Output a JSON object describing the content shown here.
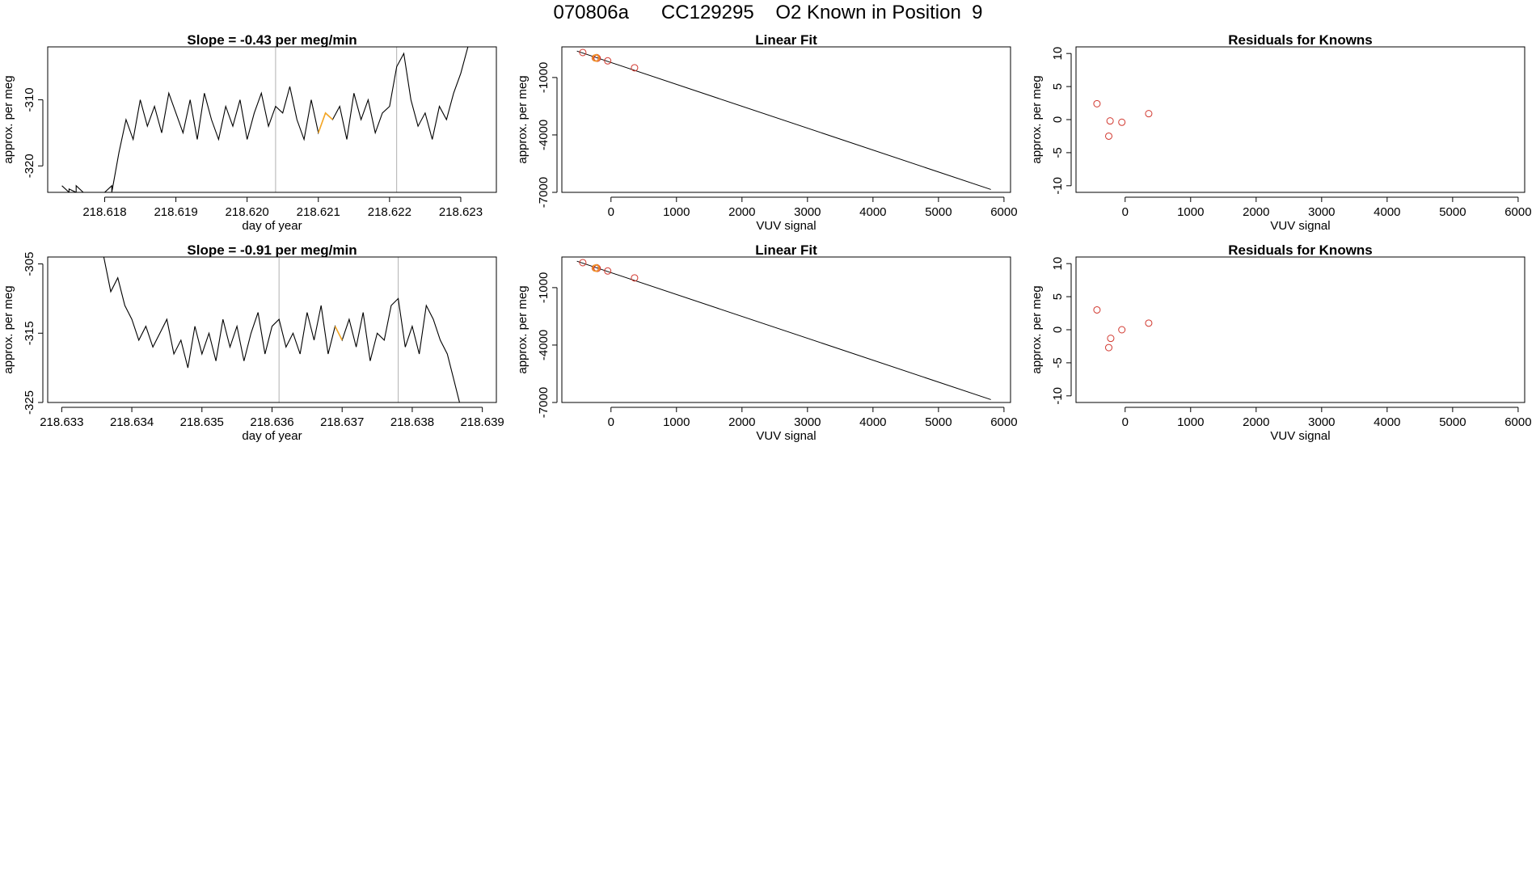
{
  "page": {
    "title": "070806a      CC129295    O2 Known in Position  9"
  },
  "colors": {
    "series": "#000000",
    "known_marker": "#d1372e",
    "highlight": "#f5a623",
    "vline": "#b0b0b0",
    "axis": "#000000"
  },
  "chart_data": [
    {
      "id": "ts1",
      "type": "line",
      "title": "Slope =  -0.43  per meg/min",
      "xlabel": "day of year",
      "ylabel": "approx. per meg",
      "xlim": [
        218.6172,
        218.6235
      ],
      "ylim": [
        -324,
        -302
      ],
      "xticks": [
        218.618,
        218.619,
        218.62,
        218.621,
        218.622,
        218.623
      ],
      "xtick_labels": [
        "218.618",
        "218.619",
        "218.620",
        "218.621",
        "218.622",
        "218.623"
      ],
      "yticks": [
        -310,
        -320
      ],
      "ytick_labels": [
        "-310",
        "-320"
      ],
      "vlines": [
        218.6204,
        218.6221
      ],
      "highlight_x": [
        218.621,
        218.6212
      ],
      "x": [
        218.6174,
        218.6175,
        218.6175,
        218.6176,
        218.6176,
        218.6177,
        218.6178,
        218.618,
        218.6181,
        218.6181,
        218.6182,
        218.6183,
        218.6184,
        218.6185,
        218.6186,
        218.6187,
        218.6188,
        218.6189,
        218.619,
        218.6191,
        218.6192,
        218.6193,
        218.6194,
        218.6195,
        218.6196,
        218.6197,
        218.6198,
        218.6199,
        218.62,
        218.6201,
        218.6202,
        218.6203,
        218.6204,
        218.6205,
        218.6206,
        218.6207,
        218.6208,
        218.6209,
        218.621,
        218.6211,
        218.6212,
        218.6213,
        218.6214,
        218.6215,
        218.6216,
        218.6217,
        218.6218,
        218.6219,
        218.622,
        218.6221,
        218.6222,
        218.6223,
        218.6224,
        218.6225,
        218.6226,
        218.6227,
        218.6228,
        218.6229,
        218.623,
        218.6231
      ],
      "y": [
        -323,
        -324,
        -323.5,
        -324,
        -323,
        -324,
        -324,
        -324,
        -323,
        -324,
        -318,
        -313,
        -316,
        -310,
        -314,
        -311,
        -315,
        -309,
        -312,
        -315,
        -310,
        -316,
        -309,
        -313,
        -316,
        -311,
        -314,
        -310,
        -316,
        -312,
        -309,
        -314,
        -311,
        -312,
        -308,
        -313,
        -316,
        -310,
        -315,
        -312,
        -313,
        -311,
        -316,
        -309,
        -313,
        -310,
        -315,
        -312,
        -311,
        -305,
        -303,
        -310,
        -314,
        -312,
        -316,
        -311,
        -313,
        -309,
        -306,
        -302
      ],
      "x_pairs_note": ""
    },
    {
      "id": "fit1",
      "type": "scatter",
      "title": "Linear Fit",
      "xlabel": "VUV signal",
      "ylabel": "approx. per meg",
      "xlim": [
        -750,
        6100
      ],
      "ylim": [
        -7000,
        600
      ],
      "xticks": [
        0,
        1000,
        2000,
        3000,
        4000,
        5000,
        6000
      ],
      "xtick_labels": [
        "0",
        "1000",
        "2000",
        "3000",
        "4000",
        "5000",
        "6000"
      ],
      "yticks": [
        -1000,
        -4000,
        -7000
      ],
      "ytick_labels": [
        "-1000",
        "-4000",
        "-7000"
      ],
      "points": [
        [
          -430,
          305
        ],
        [
          -240,
          20
        ],
        [
          -220,
          40
        ],
        [
          -210,
          5
        ],
        [
          -50,
          -130
        ],
        [
          360,
          -490
        ]
      ],
      "highlight_points": [
        [
          -230,
          20
        ]
      ],
      "fit_line": [
        [
          -520,
          380
        ],
        [
          5800,
          -6850
        ]
      ]
    },
    {
      "id": "res1",
      "type": "scatter",
      "title": "Residuals for Knowns",
      "xlabel": "VUV signal",
      "ylabel": "approx. per meg",
      "xlim": [
        -750,
        6100
      ],
      "ylim": [
        -11,
        11
      ],
      "xticks": [
        0,
        1000,
        2000,
        3000,
        4000,
        5000,
        6000
      ],
      "xtick_labels": [
        "0",
        "1000",
        "2000",
        "3000",
        "4000",
        "5000",
        "6000"
      ],
      "yticks": [
        10,
        5,
        0,
        -5,
        -10
      ],
      "ytick_labels": [
        "10",
        "5",
        "0",
        "-5",
        "-10"
      ],
      "points": [
        [
          -430,
          2.4
        ],
        [
          -230,
          -0.2
        ],
        [
          -250,
          -2.5
        ],
        [
          -50,
          -0.4
        ],
        [
          360,
          0.9
        ]
      ]
    },
    {
      "id": "ts2",
      "type": "line",
      "title": "Slope =  -0.91  per meg/min",
      "xlabel": "day of year",
      "ylabel": "approx. per meg",
      "xlim": [
        218.6328,
        218.6392
      ],
      "ylim": [
        -325,
        -304
      ],
      "xticks": [
        218.633,
        218.634,
        218.635,
        218.636,
        218.637,
        218.638,
        218.639
      ],
      "xtick_labels": [
        "218.633",
        "218.634",
        "218.635",
        "218.636",
        "218.637",
        "218.638",
        "218.639"
      ],
      "yticks": [
        -305,
        -315,
        -325
      ],
      "ytick_labels": [
        "-305",
        "-315",
        "-325"
      ],
      "vlines": [
        218.6361,
        218.6378
      ],
      "highlight_x": [
        218.6369,
        218.637
      ],
      "x": [
        218.6336,
        218.6337,
        218.6338,
        218.6339,
        218.634,
        218.6341,
        218.6342,
        218.6343,
        218.6344,
        218.6345,
        218.6346,
        218.6347,
        218.6348,
        218.6349,
        218.635,
        218.6351,
        218.6352,
        218.6353,
        218.6354,
        218.6355,
        218.6356,
        218.6357,
        218.6358,
        218.6359,
        218.636,
        218.6361,
        218.6362,
        218.6363,
        218.6364,
        218.6365,
        218.6366,
        218.6367,
        218.6368,
        218.6369,
        218.637,
        218.6371,
        218.6372,
        218.6373,
        218.6374,
        218.6375,
        218.6376,
        218.6377,
        218.6378,
        218.6379,
        218.638,
        218.6381,
        218.6382,
        218.6383,
        218.6384,
        218.6385,
        218.6386,
        218.6387
      ],
      "y": [
        -304,
        -309,
        -307,
        -311,
        -313,
        -316,
        -314,
        -317,
        -315,
        -313,
        -318,
        -316,
        -320,
        -314,
        -318,
        -315,
        -319,
        -313,
        -317,
        -314,
        -319,
        -315,
        -312,
        -318,
        -314,
        -313,
        -317,
        -315,
        -318,
        -312,
        -316,
        -311,
        -318,
        -314,
        -316,
        -313,
        -317,
        -312,
        -319,
        -315,
        -316,
        -311,
        -310,
        -317,
        -314,
        -318,
        -311,
        -313,
        -316,
        -318,
        -322,
        -326
      ]
    },
    {
      "id": "fit2",
      "type": "scatter",
      "title": "Linear Fit",
      "xlabel": "VUV signal",
      "ylabel": "approx. per meg",
      "xlim": [
        -750,
        6100
      ],
      "ylim": [
        -7000,
        600
      ],
      "xticks": [
        0,
        1000,
        2000,
        3000,
        4000,
        5000,
        6000
      ],
      "xtick_labels": [
        "0",
        "1000",
        "2000",
        "3000",
        "4000",
        "5000",
        "6000"
      ],
      "yticks": [
        -1000,
        -4000,
        -7000
      ],
      "ytick_labels": [
        "-1000",
        "-4000",
        "-7000"
      ],
      "points": [
        [
          -430,
          305
        ],
        [
          -240,
          20
        ],
        [
          -220,
          40
        ],
        [
          -210,
          5
        ],
        [
          -50,
          -130
        ],
        [
          360,
          -490
        ]
      ],
      "highlight_points": [
        [
          -230,
          20
        ]
      ],
      "fit_line": [
        [
          -520,
          380
        ],
        [
          5800,
          -6850
        ]
      ]
    },
    {
      "id": "res2",
      "type": "scatter",
      "title": "Residuals for Knowns",
      "xlabel": "VUV signal",
      "ylabel": "approx. per meg",
      "xlim": [
        -750,
        6100
      ],
      "ylim": [
        -11,
        11
      ],
      "xticks": [
        0,
        1000,
        2000,
        3000,
        4000,
        5000,
        6000
      ],
      "xtick_labels": [
        "0",
        "1000",
        "2000",
        "3000",
        "4000",
        "5000",
        "6000"
      ],
      "yticks": [
        10,
        5,
        0,
        -5,
        -10
      ],
      "ytick_labels": [
        "10",
        "5",
        "0",
        "-5",
        "-10"
      ],
      "points": [
        [
          -430,
          3.0
        ],
        [
          -220,
          -1.3
        ],
        [
          -250,
          -2.7
        ],
        [
          -50,
          0.0
        ],
        [
          360,
          1.0
        ]
      ]
    }
  ]
}
